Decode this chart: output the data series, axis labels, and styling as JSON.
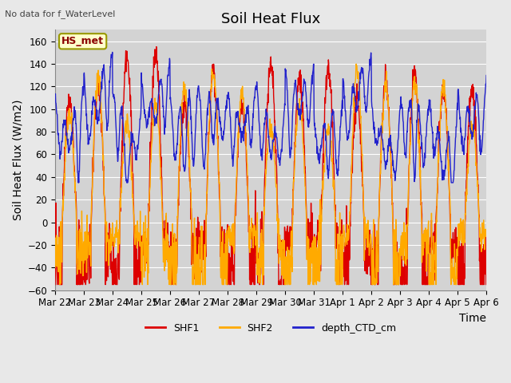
{
  "title": "Soil Heat Flux",
  "ylabel": "Soil Heat Flux (W/m2)",
  "xlabel": "Time",
  "top_left_note": "No data for f_WaterLevel",
  "legend_label": "HS_met",
  "ylim": [
    -60,
    170
  ],
  "yticks": [
    -60,
    -40,
    -20,
    0,
    20,
    40,
    60,
    80,
    100,
    120,
    140,
    160
  ],
  "xtick_labels": [
    "Mar 22",
    "Mar 23",
    "Mar 24",
    "Mar 25",
    "Mar 26",
    "Mar 27",
    "Mar 28",
    "Mar 29",
    "Mar 30",
    "Mar 31",
    "Apr 1",
    "Apr 2",
    "Apr 3",
    "Apr 4",
    "Apr 5",
    "Apr 6"
  ],
  "colors": {
    "SHF1": "#dd0000",
    "SHF2": "#ffaa00",
    "depth_CTD_cm": "#2222cc"
  },
  "line_width": 1.0,
  "fig_bg": "#e8e8e8",
  "plot_bg": "#d3d3d3",
  "grid_color": "#ffffff",
  "title_fontsize": 13,
  "label_fontsize": 10,
  "tick_fontsize": 8.5,
  "note_fontsize": 8,
  "legend_fontsize": 9
}
